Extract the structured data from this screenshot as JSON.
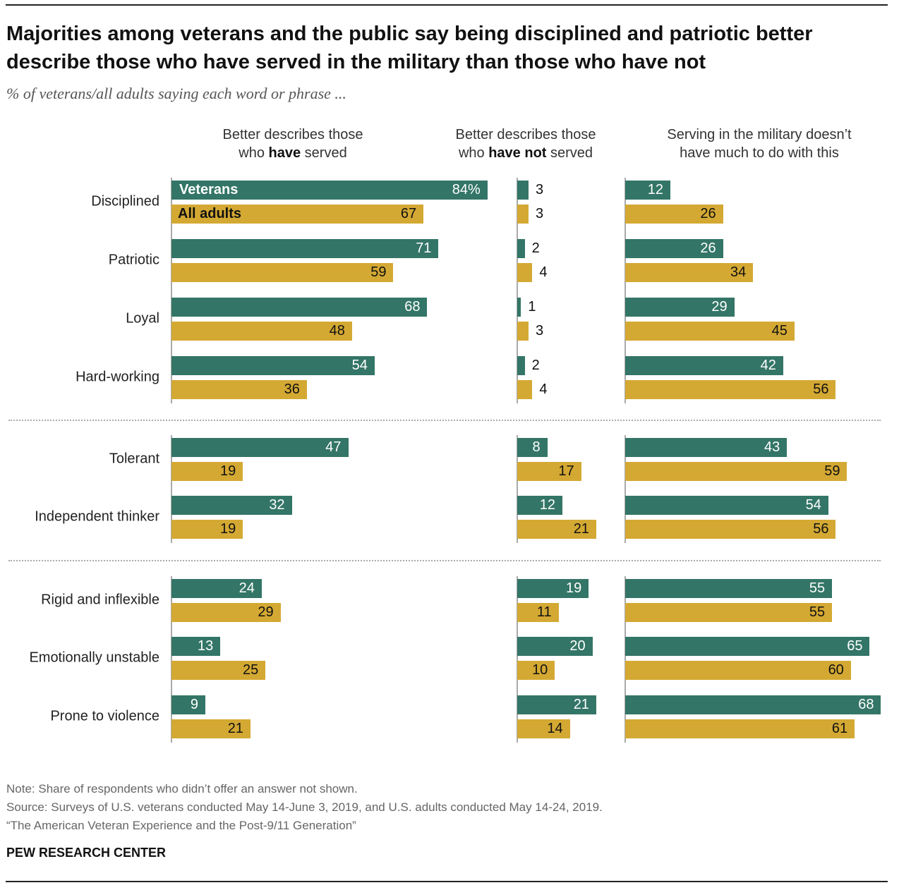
{
  "title": "Majorities among veterans and the public say being disciplined and patriotic better describe those who have served in the military than those who have not",
  "subtitle": "% of veterans/all adults saying each word or phrase ...",
  "columns": [
    {
      "pre": "Better describes those",
      "line2a": "who ",
      "bold": "have",
      "line2b": " served"
    },
    {
      "pre": "Better describes those",
      "line2a": "who ",
      "bold": "have not",
      "line2b": " served"
    },
    {
      "pre": "Serving in the military doesn’t",
      "line2a": "have much to do with this",
      "bold": "",
      "line2b": ""
    }
  ],
  "colors": {
    "veterans": "#337566",
    "all_adults": "#D4A933"
  },
  "note": "Note: Share of respondents who didn’t offer an answer not shown.",
  "source": "Source: Surveys of U.S. veterans conducted May 14-June 3, 2019, and U.S. adults conducted May 14-24, 2019.",
  "report": "“The American Veteran Experience and the Post-9/11 Generation”",
  "brand": "PEW RESEARCH CENTER",
  "chart_data": {
    "type": "bar",
    "orientation": "horizontal",
    "xlim": [
      0,
      100
    ],
    "grid": false,
    "legend_placement": "inside-first-bar",
    "series_names": [
      "Veterans",
      "All adults"
    ],
    "first_value_suffix": "%",
    "panels": [
      "Better describes those who have served",
      "Better describes those who have not served",
      "Serving in the military doesn’t have much to do with this"
    ],
    "groups": [
      [
        0,
        1,
        2,
        3
      ],
      [
        4,
        5
      ],
      [
        6,
        7,
        8
      ]
    ],
    "categories": [
      "Disciplined",
      "Patriotic",
      "Loyal",
      "Hard-working",
      "Tolerant",
      "Independent thinker",
      "Rigid and inflexible",
      "Emotionally unstable",
      "Prone to violence"
    ],
    "veterans": [
      [
        84,
        3,
        12
      ],
      [
        71,
        2,
        26
      ],
      [
        68,
        1,
        29
      ],
      [
        54,
        2,
        42
      ],
      [
        47,
        8,
        43
      ],
      [
        32,
        12,
        54
      ],
      [
        24,
        19,
        55
      ],
      [
        13,
        20,
        65
      ],
      [
        9,
        21,
        68
      ]
    ],
    "all_adults": [
      [
        67,
        3,
        26
      ],
      [
        59,
        4,
        34
      ],
      [
        48,
        3,
        45
      ],
      [
        36,
        4,
        56
      ],
      [
        19,
        17,
        59
      ],
      [
        19,
        21,
        56
      ],
      [
        29,
        11,
        55
      ],
      [
        25,
        10,
        60
      ],
      [
        21,
        14,
        61
      ]
    ]
  }
}
